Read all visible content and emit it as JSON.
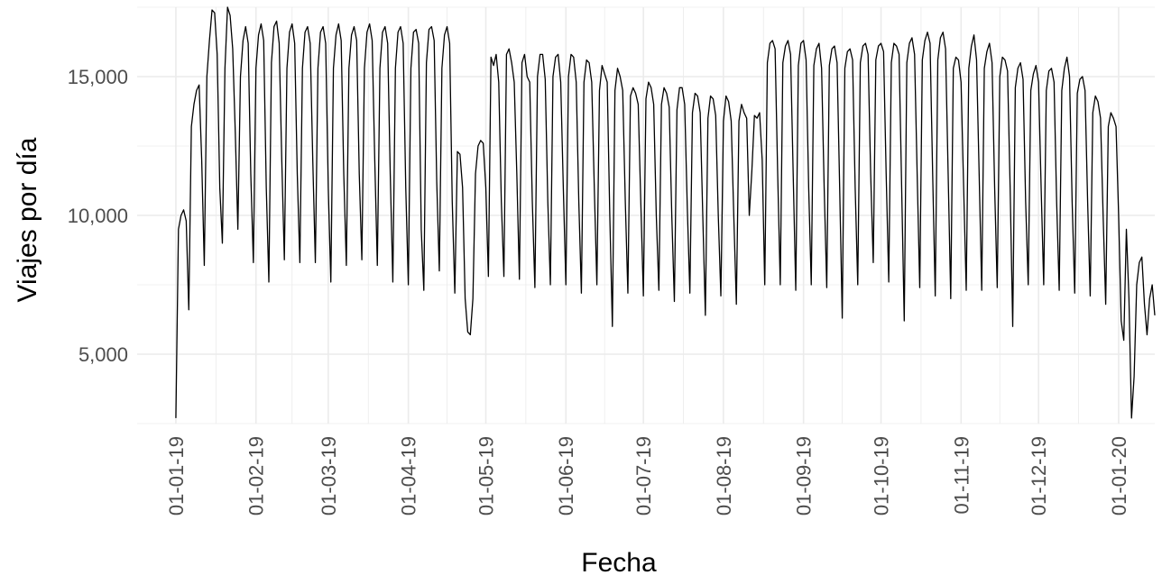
{
  "chart_data": {
    "type": "line",
    "title": "",
    "xlabel": "Fecha",
    "ylabel": "Viajes por día",
    "x_tick_labels": [
      "01-01-19",
      "01-02-19",
      "01-03-19",
      "01-04-19",
      "01-05-19",
      "01-06-19",
      "01-07-19",
      "01-08-19",
      "01-09-19",
      "01-10-19",
      "01-11-19",
      "01-12-19",
      "01-01-20"
    ],
    "x_tick_dates": [
      "2019-01-01",
      "2019-02-01",
      "2019-03-01",
      "2019-04-01",
      "2019-05-01",
      "2019-06-01",
      "2019-07-01",
      "2019-08-01",
      "2019-09-01",
      "2019-10-01",
      "2019-11-01",
      "2019-12-01",
      "2020-01-01"
    ],
    "y_tick_labels": [
      "5,000",
      "10,000",
      "15,000"
    ],
    "y_ticks": [
      5000,
      10000,
      15000
    ],
    "xlim": [
      "2018-12-17",
      "2020-01-15"
    ],
    "ylim": [
      2500,
      17500
    ],
    "grid": true,
    "line_color": "#000000",
    "grid_color": "#ebebeb",
    "series": [
      {
        "x_start": "2019-01-01",
        "x_step": "1 day",
        "values": [
          2700,
          9500,
          10000,
          10200,
          9800,
          6600,
          13200,
          14000,
          14500,
          14700,
          12000,
          8200,
          15000,
          16300,
          17400,
          17300,
          15800,
          11000,
          9000,
          15300,
          17500,
          17200,
          16000,
          13000,
          9500,
          15000,
          16300,
          16800,
          16200,
          11500,
          8300,
          15300,
          16500,
          16900,
          16300,
          11000,
          7600,
          15500,
          16800,
          17000,
          16200,
          12000,
          8400,
          15300,
          16600,
          16900,
          16200,
          11500,
          8300,
          15300,
          16600,
          16800,
          16200,
          12000,
          8300,
          15300,
          16600,
          16800,
          16200,
          11000,
          7600,
          15300,
          16500,
          16900,
          16300,
          11500,
          8200,
          15300,
          16500,
          16800,
          16300,
          11500,
          8400,
          15300,
          16600,
          16900,
          16300,
          12000,
          8200,
          15300,
          16600,
          16800,
          16200,
          11500,
          7600,
          15300,
          16600,
          16800,
          16200,
          11000,
          7500,
          15300,
          16600,
          16700,
          16200,
          9500,
          7300,
          15500,
          16700,
          16800,
          16300,
          11200,
          8000,
          15300,
          16500,
          16800,
          16200,
          10500,
          7200,
          12300,
          12200,
          11000,
          7000,
          5800,
          5700,
          7000,
          11500,
          12500,
          12700,
          12600,
          11000,
          7800,
          15700,
          15400,
          15800,
          14800,
          10500,
          7800,
          15800,
          16000,
          15500,
          14800,
          11500,
          7700,
          15500,
          15800,
          15000,
          14800,
          10500,
          7400,
          15000,
          15800,
          15800,
          14900,
          10500,
          7500,
          15000,
          15700,
          15800,
          14800,
          11000,
          7500,
          15000,
          15800,
          15700,
          14800,
          10500,
          7200,
          14800,
          15600,
          15500,
          14800,
          11000,
          7500,
          14500,
          15400,
          15100,
          14800,
          10000,
          6000,
          14500,
          15300,
          15000,
          14500,
          10500,
          7200,
          14300,
          14600,
          14400,
          14000,
          10500,
          7100,
          14200,
          14800,
          14600,
          14000,
          10000,
          7300,
          14000,
          14600,
          14400,
          13900,
          10000,
          6900,
          13800,
          14600,
          14600,
          14000,
          10300,
          7200,
          13700,
          14400,
          14300,
          13700,
          10000,
          6400,
          13500,
          14300,
          14200,
          13600,
          10000,
          7100,
          13400,
          14300,
          14100,
          13400,
          10000,
          6800,
          13400,
          14000,
          13700,
          13500,
          10000,
          11600,
          13600,
          13500,
          13700,
          12000,
          7500,
          15500,
          16200,
          16300,
          16000,
          11500,
          7500,
          15500,
          16100,
          16300,
          15800,
          11500,
          7300,
          15400,
          16200,
          16300,
          15600,
          11000,
          7500,
          15400,
          16000,
          16200,
          15300,
          11000,
          7400,
          15400,
          16000,
          16100,
          15500,
          11000,
          6300,
          15300,
          15900,
          16000,
          15600,
          11000,
          7500,
          15500,
          16100,
          16200,
          15800,
          11500,
          8300,
          15600,
          16100,
          16200,
          15900,
          11500,
          7600,
          15500,
          16200,
          16100,
          15800,
          11000,
          6200,
          15500,
          16200,
          16400,
          15800,
          11500,
          7400,
          15600,
          16300,
          16600,
          16200,
          11500,
          7100,
          15600,
          16400,
          16600,
          16000,
          11500,
          7000,
          15300,
          15700,
          15600,
          14800,
          11000,
          7300,
          15300,
          16100,
          16500,
          15600,
          11500,
          7300,
          15300,
          15900,
          16200,
          15500,
          11000,
          7400,
          15000,
          15700,
          15600,
          15200,
          11000,
          6000,
          14600,
          15300,
          15500,
          14900,
          10500,
          7500,
          14500,
          15100,
          15400,
          14800,
          11000,
          7500,
          14500,
          15200,
          15300,
          14800,
          10500,
          7300,
          14500,
          15300,
          15700,
          15000,
          10500,
          7200,
          14400,
          14900,
          15000,
          14500,
          10500,
          7100,
          13700,
          14300,
          14100,
          13500,
          10000,
          6800,
          13200,
          13700,
          13500,
          13200,
          10000,
          6200,
          5500,
          9500,
          7000,
          2700,
          4200,
          7500,
          8300,
          8500,
          6800,
          5700,
          7000,
          7500,
          6400
        ]
      }
    ]
  }
}
